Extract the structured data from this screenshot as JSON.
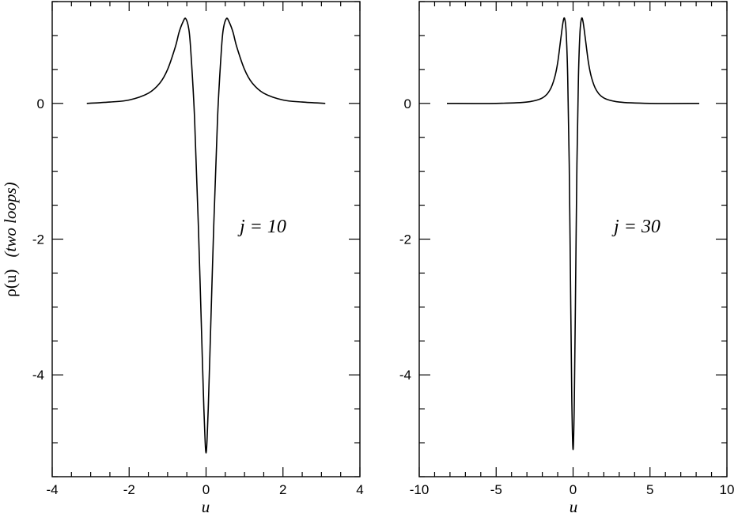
{
  "ylabel": {
    "main": "ρ(u)",
    "italic": "(two loops)"
  },
  "chart_data": [
    {
      "type": "line",
      "xlabel": "u",
      "annotation": "j = 10",
      "xlim": [
        -4,
        4
      ],
      "ylim": [
        -5.5,
        1.5
      ],
      "x_ticks": [
        -4,
        -2,
        0,
        2,
        4
      ],
      "x_tick_labels": [
        "-4",
        "-2",
        "0",
        "2",
        "4"
      ],
      "x_minor_step": 0.5,
      "y_ticks": [
        -4,
        -2,
        0
      ],
      "y_tick_labels": [
        "-4",
        "-2",
        "0"
      ],
      "y_minor_step": 0.5,
      "grid": false,
      "x_range": [
        -3.1,
        3.1
      ],
      "series": [
        {
          "x": [
            -3.1,
            -2.5,
            -2.0,
            -1.5,
            -1.2,
            -1.0,
            -0.8,
            -0.7,
            -0.6,
            -0.53,
            -0.45,
            -0.4,
            -0.3,
            -0.2,
            -0.1,
            -0.05,
            0,
            0.05,
            0.1,
            0.2,
            0.3,
            0.4,
            0.45,
            0.53,
            0.6,
            0.7,
            0.8,
            1.0,
            1.2,
            1.5,
            2.0,
            2.5,
            3.1
          ],
          "y": [
            0.0,
            0.02,
            0.05,
            0.15,
            0.3,
            0.5,
            0.83,
            1.05,
            1.2,
            1.25,
            1.1,
            0.8,
            -0.2,
            -1.8,
            -3.7,
            -4.6,
            -5.15,
            -4.6,
            -3.7,
            -1.8,
            -0.2,
            0.8,
            1.1,
            1.25,
            1.2,
            1.05,
            0.83,
            0.5,
            0.3,
            0.15,
            0.05,
            0.02,
            0.0
          ]
        }
      ]
    },
    {
      "type": "line",
      "xlabel": "u",
      "annotation": "j = 30",
      "xlim": [
        -10,
        10
      ],
      "ylim": [
        -5.5,
        1.5
      ],
      "x_ticks": [
        -10,
        -5,
        0,
        5,
        10
      ],
      "x_tick_labels": [
        "-10",
        "-5",
        "0",
        "5",
        "10"
      ],
      "x_minor_step": 1,
      "y_ticks": [
        -4,
        -2,
        0
      ],
      "y_tick_labels": [
        "-4",
        "-2",
        "0"
      ],
      "y_minor_step": 0.5,
      "grid": false,
      "x_range": [
        -8.2,
        8.2
      ],
      "series": [
        {
          "x": [
            -8.2,
            -5.0,
            -3.0,
            -2.0,
            -1.5,
            -1.2,
            -1.0,
            -0.8,
            -0.65,
            -0.55,
            -0.45,
            -0.35,
            -0.25,
            -0.15,
            -0.08,
            0,
            0.08,
            0.15,
            0.25,
            0.35,
            0.45,
            0.55,
            0.65,
            0.8,
            1.0,
            1.2,
            1.5,
            2.0,
            3.0,
            5.0,
            8.2
          ],
          "y": [
            0.0,
            0.0,
            0.02,
            0.08,
            0.2,
            0.38,
            0.6,
            0.95,
            1.2,
            1.25,
            1.05,
            0.4,
            -0.9,
            -3.0,
            -4.4,
            -5.1,
            -4.4,
            -3.0,
            -0.9,
            0.4,
            1.05,
            1.25,
            1.2,
            0.95,
            0.6,
            0.38,
            0.2,
            0.08,
            0.02,
            0.0,
            0.0
          ]
        }
      ]
    }
  ]
}
